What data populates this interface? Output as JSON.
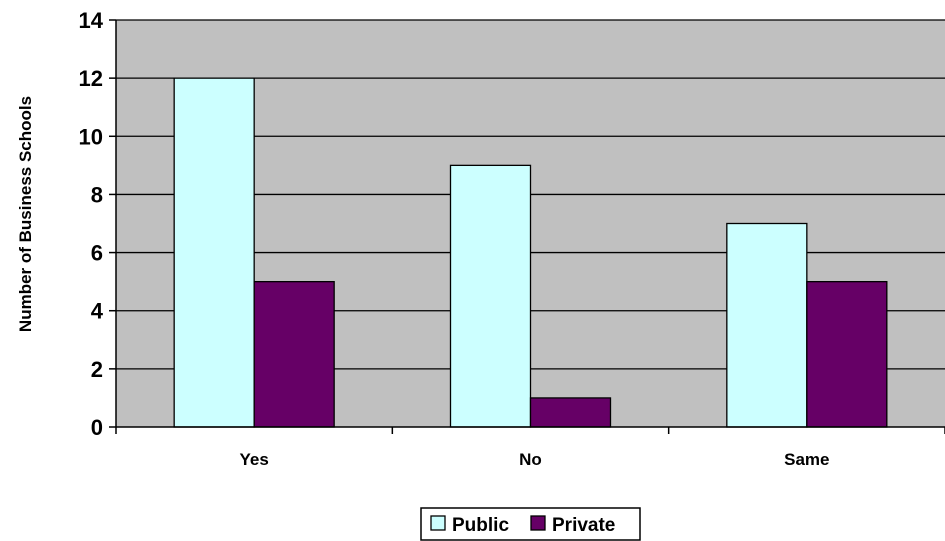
{
  "chart_data": {
    "type": "bar",
    "categories": [
      "Yes",
      "No",
      "Same"
    ],
    "series": [
      {
        "name": "Public",
        "values": [
          12,
          9,
          7
        ],
        "color": "#ccffff"
      },
      {
        "name": "Private",
        "values": [
          5,
          1,
          5
        ],
        "color": "#660066"
      }
    ],
    "title": "",
    "xlabel": "",
    "ylabel": "Number of Business Schools",
    "ylim": [
      0,
      14
    ],
    "yticks": [
      0,
      2,
      4,
      6,
      8,
      10,
      12,
      14
    ],
    "grid": true,
    "plot_background": "#c0c0c0",
    "legend_position": "bottom-center"
  }
}
